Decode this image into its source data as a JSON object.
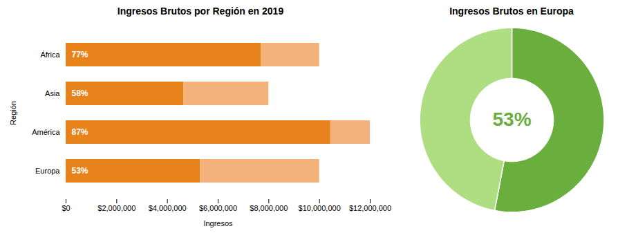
{
  "chart_data": [
    {
      "type": "bar",
      "orientation": "horizontal",
      "stacked": true,
      "title": "Ingresos Brutos por Región en 2019",
      "xlabel": "Ingresos",
      "ylabel": "Región",
      "categories": [
        "África",
        "Asia",
        "América",
        "Europa"
      ],
      "series": [
        {
          "color": "#E8821A",
          "values": [
            7700000,
            4640000,
            10440000,
            5300000
          ]
        },
        {
          "color": "#F2B27A",
          "values": [
            2300000,
            3360000,
            1560000,
            4700000
          ]
        }
      ],
      "xlim": [
        0,
        12000000
      ],
      "xticks": [
        {
          "value": 0,
          "label": "$0"
        },
        {
          "value": 2000000,
          "label": "$2,000,000"
        },
        {
          "value": 4000000,
          "label": "$4,000,000"
        },
        {
          "value": 6000000,
          "label": "$6,000,000"
        },
        {
          "value": 8000000,
          "label": "$8,000,000"
        },
        {
          "value": 10000000,
          "label": "$10,000,000"
        },
        {
          "value": 12000000,
          "label": "$12,000,000"
        }
      ],
      "annotations": [
        {
          "text": "77%",
          "category": "África"
        },
        {
          "text": "58%",
          "category": "Asia"
        },
        {
          "text": "87%",
          "category": "América"
        },
        {
          "text": "53%",
          "category": "Europa"
        }
      ]
    },
    {
      "type": "donut",
      "title": "Ingresos Brutos en Europa",
      "values": [
        53,
        47
      ],
      "colors": [
        "#6AAF3D",
        "#AEDD82"
      ],
      "annotations": [
        {
          "text": "53%",
          "color": "#6AAF3D"
        }
      ]
    }
  ]
}
